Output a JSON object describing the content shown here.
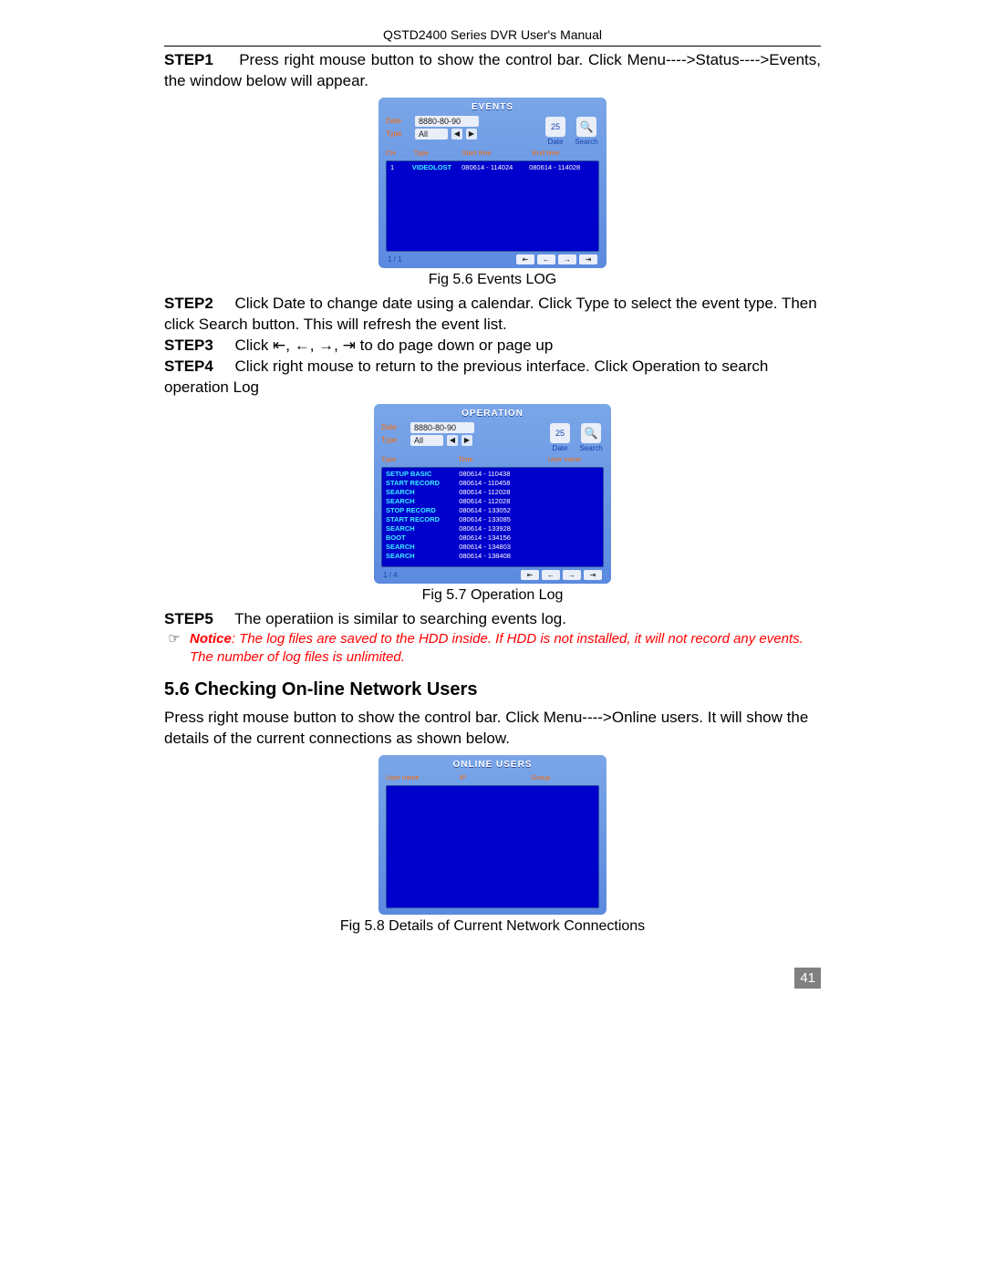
{
  "header": "QSTD2400 Series DVR User's Manual",
  "step1": {
    "label": "STEP1",
    "text": "Press right mouse button to show the control bar. Click Menu---->Status---->Events, the window below will appear."
  },
  "fig56": {
    "title": "EVENTS",
    "date_label": "Date",
    "date_value": "8880-80-90",
    "type_label": "Type",
    "type_value": "All",
    "btn_date": "25",
    "btn_date_label": "Date",
    "btn_search_label": "Search",
    "cols": [
      "CH",
      "Type",
      "Start time",
      "End time"
    ],
    "rows": [
      [
        "1",
        "VIDEOLOST",
        "080614 - 114024",
        "080614 - 114028"
      ]
    ],
    "page_ind": "1 / 1",
    "caption": "Fig 5.6 Events LOG"
  },
  "step2": {
    "label": "STEP2",
    "text": "Click Date to change date using a calendar. Click Type to select the event type. Then click Search button. This will refresh the event list."
  },
  "step3": {
    "label": "STEP3",
    "pre": "Click ",
    "arrows": "⇤,  ←,  →,  ⇥",
    "post": " to do page down or page up"
  },
  "step4": {
    "label": "STEP4",
    "text": "Click right mouse to return to the previous interface. Click Operation to search operation Log"
  },
  "fig57": {
    "title": "OPERATION",
    "date_label": "Date",
    "date_value": "8880-80-90",
    "type_label": "Type",
    "type_value": "All",
    "btn_date": "25",
    "btn_date_label": "Date",
    "btn_search_label": "Search",
    "cols": [
      "Type",
      "Time",
      "User name"
    ],
    "rows": [
      [
        "SETUP BASIC",
        "080614 - 110438",
        ""
      ],
      [
        "START RECORD",
        "080614 - 110458",
        ""
      ],
      [
        "SEARCH",
        "080614 - 112028",
        ""
      ],
      [
        "SEARCH",
        "080614 - 112028",
        ""
      ],
      [
        "STOP RECORD",
        "080614 - 133052",
        ""
      ],
      [
        "START RECORD",
        "080614 - 133085",
        ""
      ],
      [
        "SEARCH",
        "080614 - 133928",
        ""
      ],
      [
        "BOOT",
        "080614 - 134156",
        ""
      ],
      [
        "SEARCH",
        "080614 - 134803",
        ""
      ],
      [
        "SEARCH",
        "080614 - 138408",
        ""
      ]
    ],
    "page_ind": "1 / 4",
    "caption": "Fig 5.7 Operation Log"
  },
  "step5": {
    "label": "STEP5",
    "text": "The operatiion is similar to searching events log."
  },
  "notice": {
    "label": "Notice",
    "text": ": The log files are saved to the HDD inside. If HDD is not installed, it will not record any events. The number of log files is unlimited."
  },
  "section": "5.6  Checking On-line Network Users",
  "section_text": "Press right mouse button to show the control bar. Click Menu---->Online users. It will show the details of the current connections as shown below.",
  "fig58": {
    "title": "ONLINE USERS",
    "cols": [
      "User name",
      "IP",
      "Group"
    ],
    "caption": "Fig 5.8 Details of Current Network Connections"
  },
  "page_number": "41"
}
